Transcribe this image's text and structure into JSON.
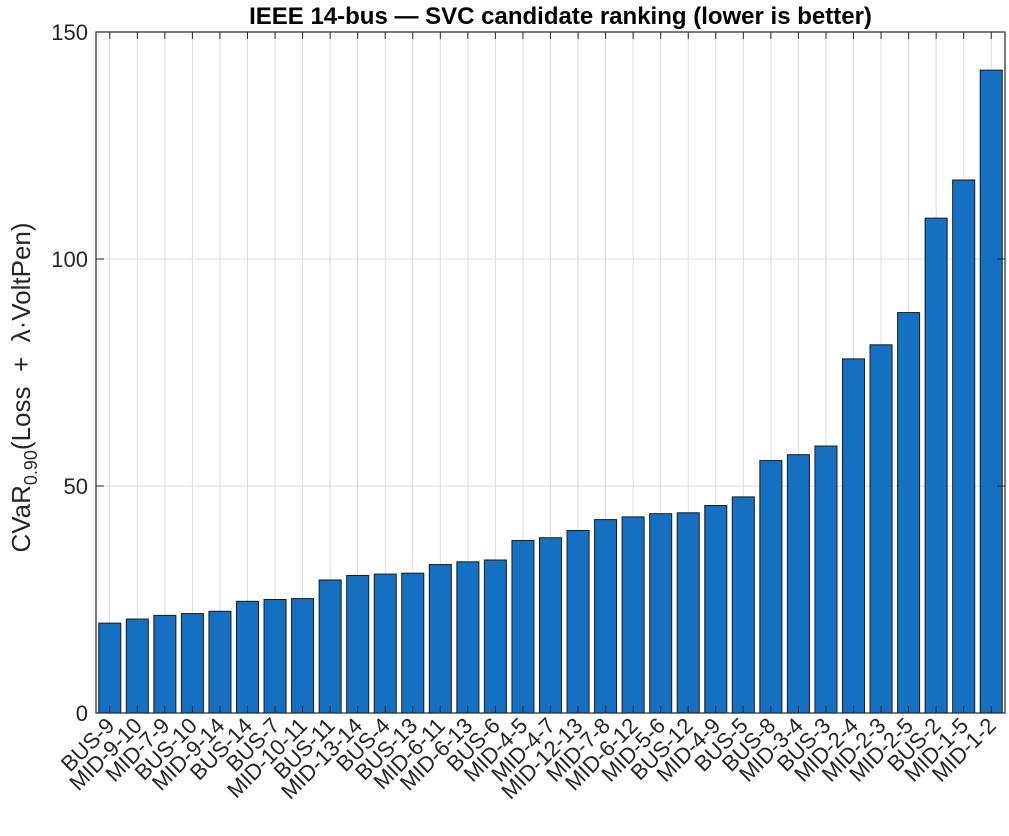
{
  "chart_data": {
    "type": "bar",
    "title": "IEEE 14-bus — SVC candidate ranking (lower is better)",
    "ylabel": {
      "main": "CVaR",
      "subscript": "0.90",
      "rest": "(Loss  +  λ·VoltPen)"
    },
    "xlabel": "",
    "ylim": [
      0,
      150
    ],
    "yticks": [
      0,
      50,
      100,
      150
    ],
    "grid": true,
    "bar_color": "#1570c1",
    "bar_edge_color": "#1a1a1a",
    "categories": [
      "BUS-9",
      "MID-9-10",
      "MID-7-9",
      "BUS-10",
      "MID-9-14",
      "BUS-14",
      "BUS-7",
      "MID-10-11",
      "BUS-11",
      "MID-13-14",
      "BUS-4",
      "BUS-13",
      "MID-6-11",
      "MID-6-13",
      "BUS-6",
      "MID-4-5",
      "MID-4-7",
      "MID-12-13",
      "MID-7-8",
      "MID-6-12",
      "MID-5-6",
      "BUS-12",
      "MID-4-9",
      "BUS-5",
      "BUS-8",
      "MID-3-4",
      "BUS-3",
      "MID-2-4",
      "MID-2-3",
      "MID-2-5",
      "BUS-2",
      "MID-1-5",
      "MID-1-2"
    ],
    "values": [
      19.8,
      20.7,
      21.5,
      21.9,
      22.4,
      24.6,
      25.0,
      25.2,
      29.3,
      30.3,
      30.6,
      30.8,
      32.7,
      33.3,
      33.7,
      38.0,
      38.6,
      40.2,
      42.6,
      43.2,
      43.9,
      44.1,
      45.7,
      47.6,
      55.6,
      56.9,
      58.8,
      78.0,
      81.1,
      88.2,
      109.0,
      117.4,
      141.6
    ]
  }
}
